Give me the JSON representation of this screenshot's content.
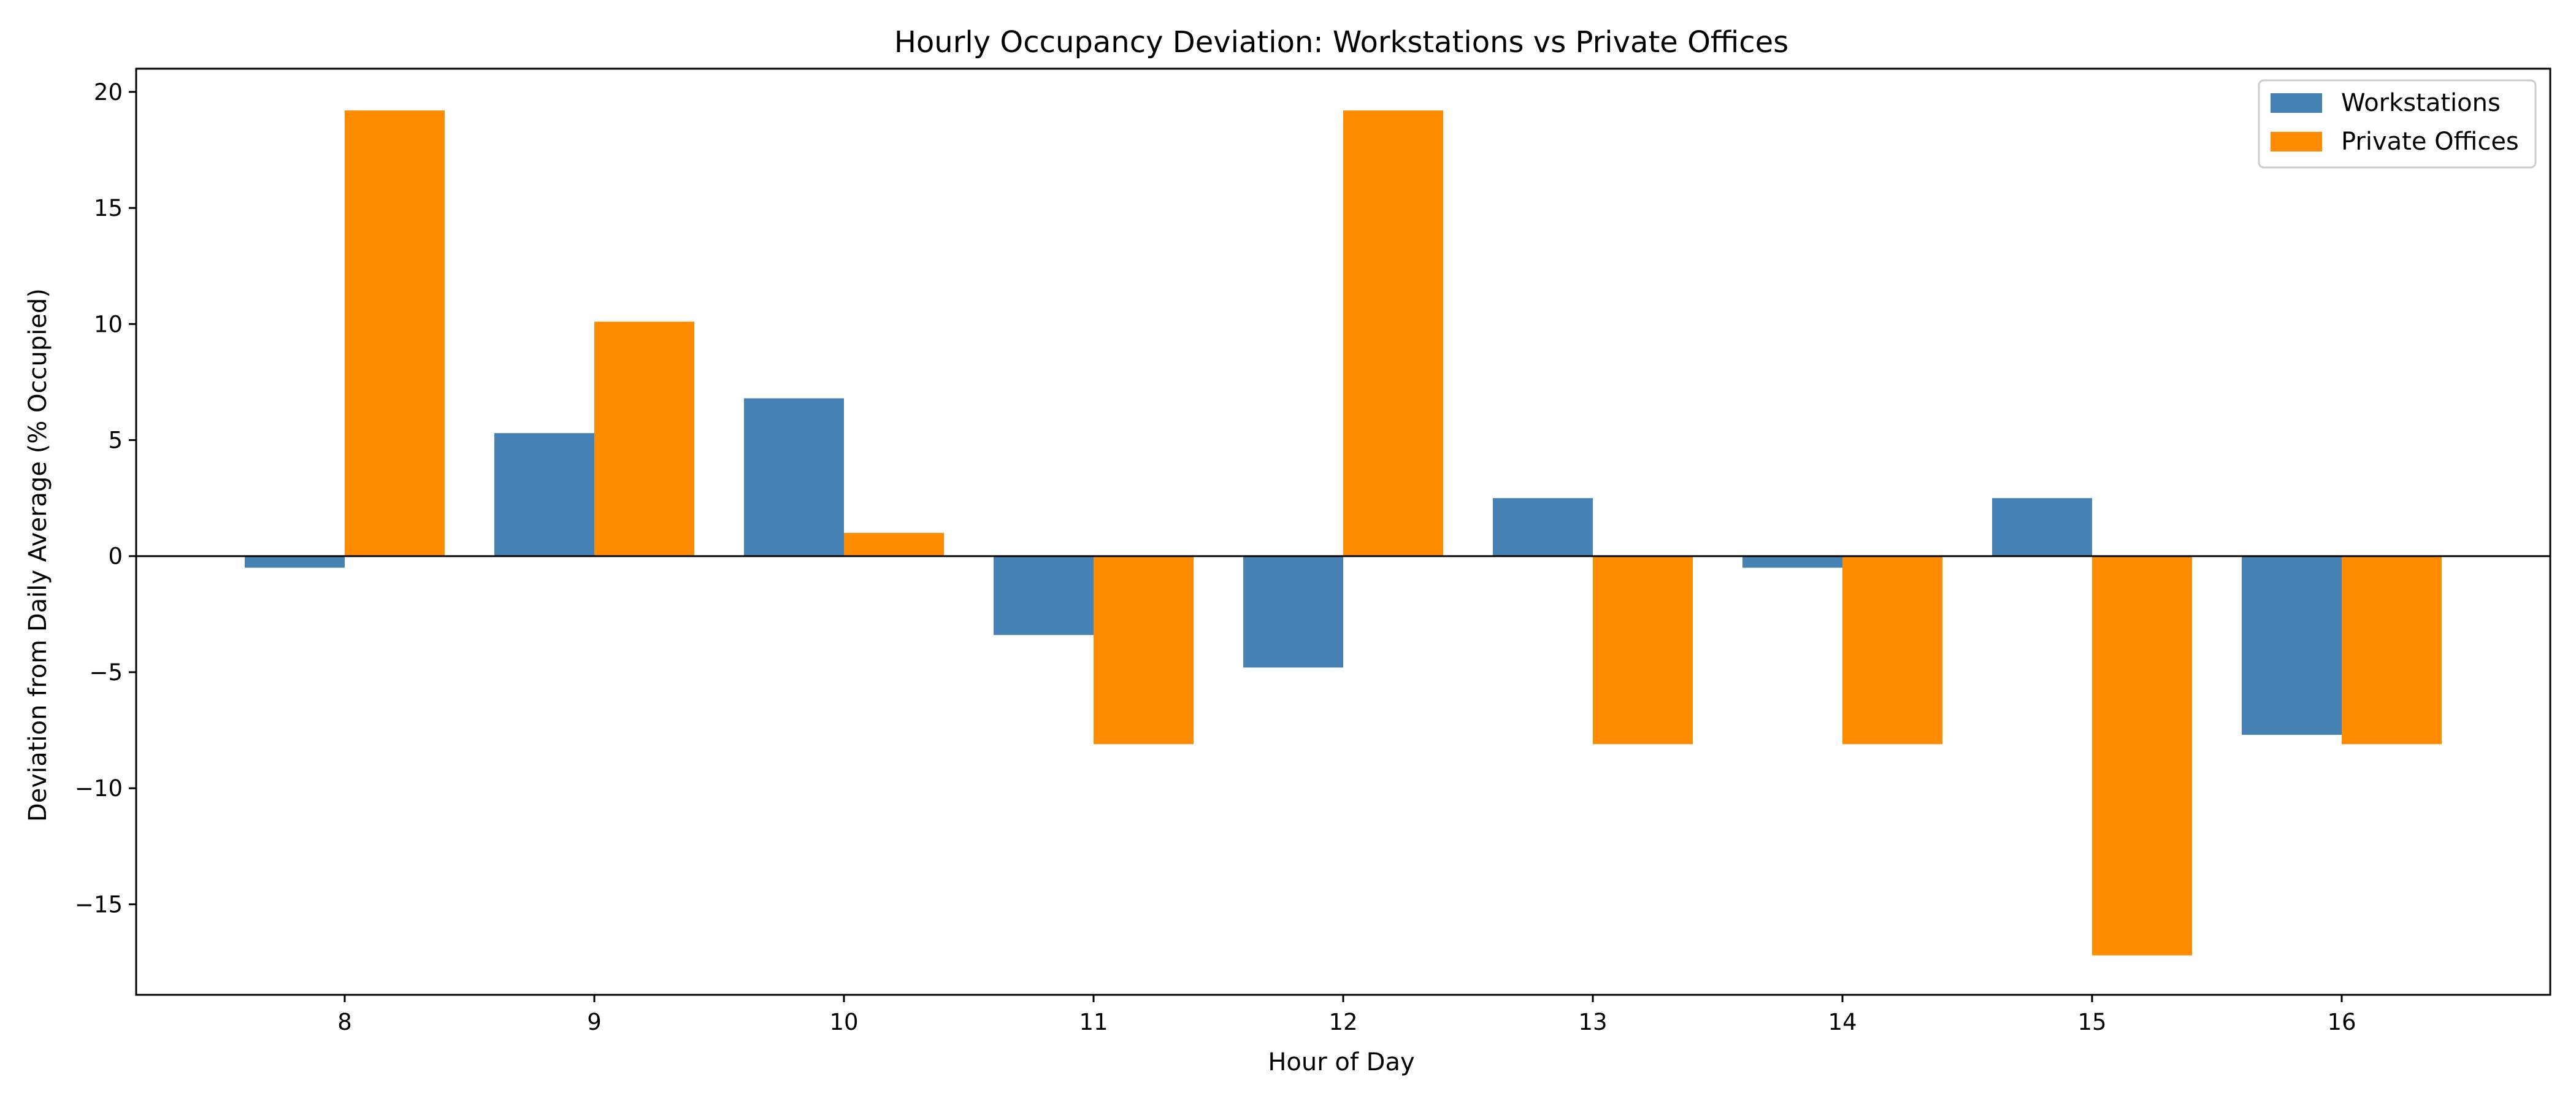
{
  "colors": {
    "workstations": "#4682b4",
    "private_offices": "#ff8c00"
  },
  "chart_data": {
    "type": "bar",
    "title": "Hourly Occupancy Deviation: Workstations vs Private Offices",
    "xlabel": "Hour of Day",
    "ylabel": "Deviation from Daily Average (% Occupied)",
    "categories": [
      "8",
      "9",
      "10",
      "11",
      "12",
      "13",
      "14",
      "15",
      "16"
    ],
    "series": [
      {
        "name": "Workstations",
        "values": [
          -0.5,
          5.3,
          6.8,
          -3.4,
          -4.8,
          2.5,
          -0.5,
          2.5,
          -7.7
        ]
      },
      {
        "name": "Private Offices",
        "values": [
          19.2,
          10.1,
          1.0,
          -8.1,
          19.2,
          -8.1,
          -8.1,
          -17.2,
          -8.1
        ]
      }
    ],
    "ylim": [
      -18.9,
      21.0
    ],
    "yticks": [
      20,
      15,
      10,
      5,
      0,
      -5,
      -10,
      -15
    ],
    "ytick_labels": [
      "20",
      "15",
      "10",
      "5",
      "0",
      "−5",
      "−10",
      "−15"
    ],
    "legend_position": "top-right",
    "grid": false,
    "zero_line": true
  }
}
